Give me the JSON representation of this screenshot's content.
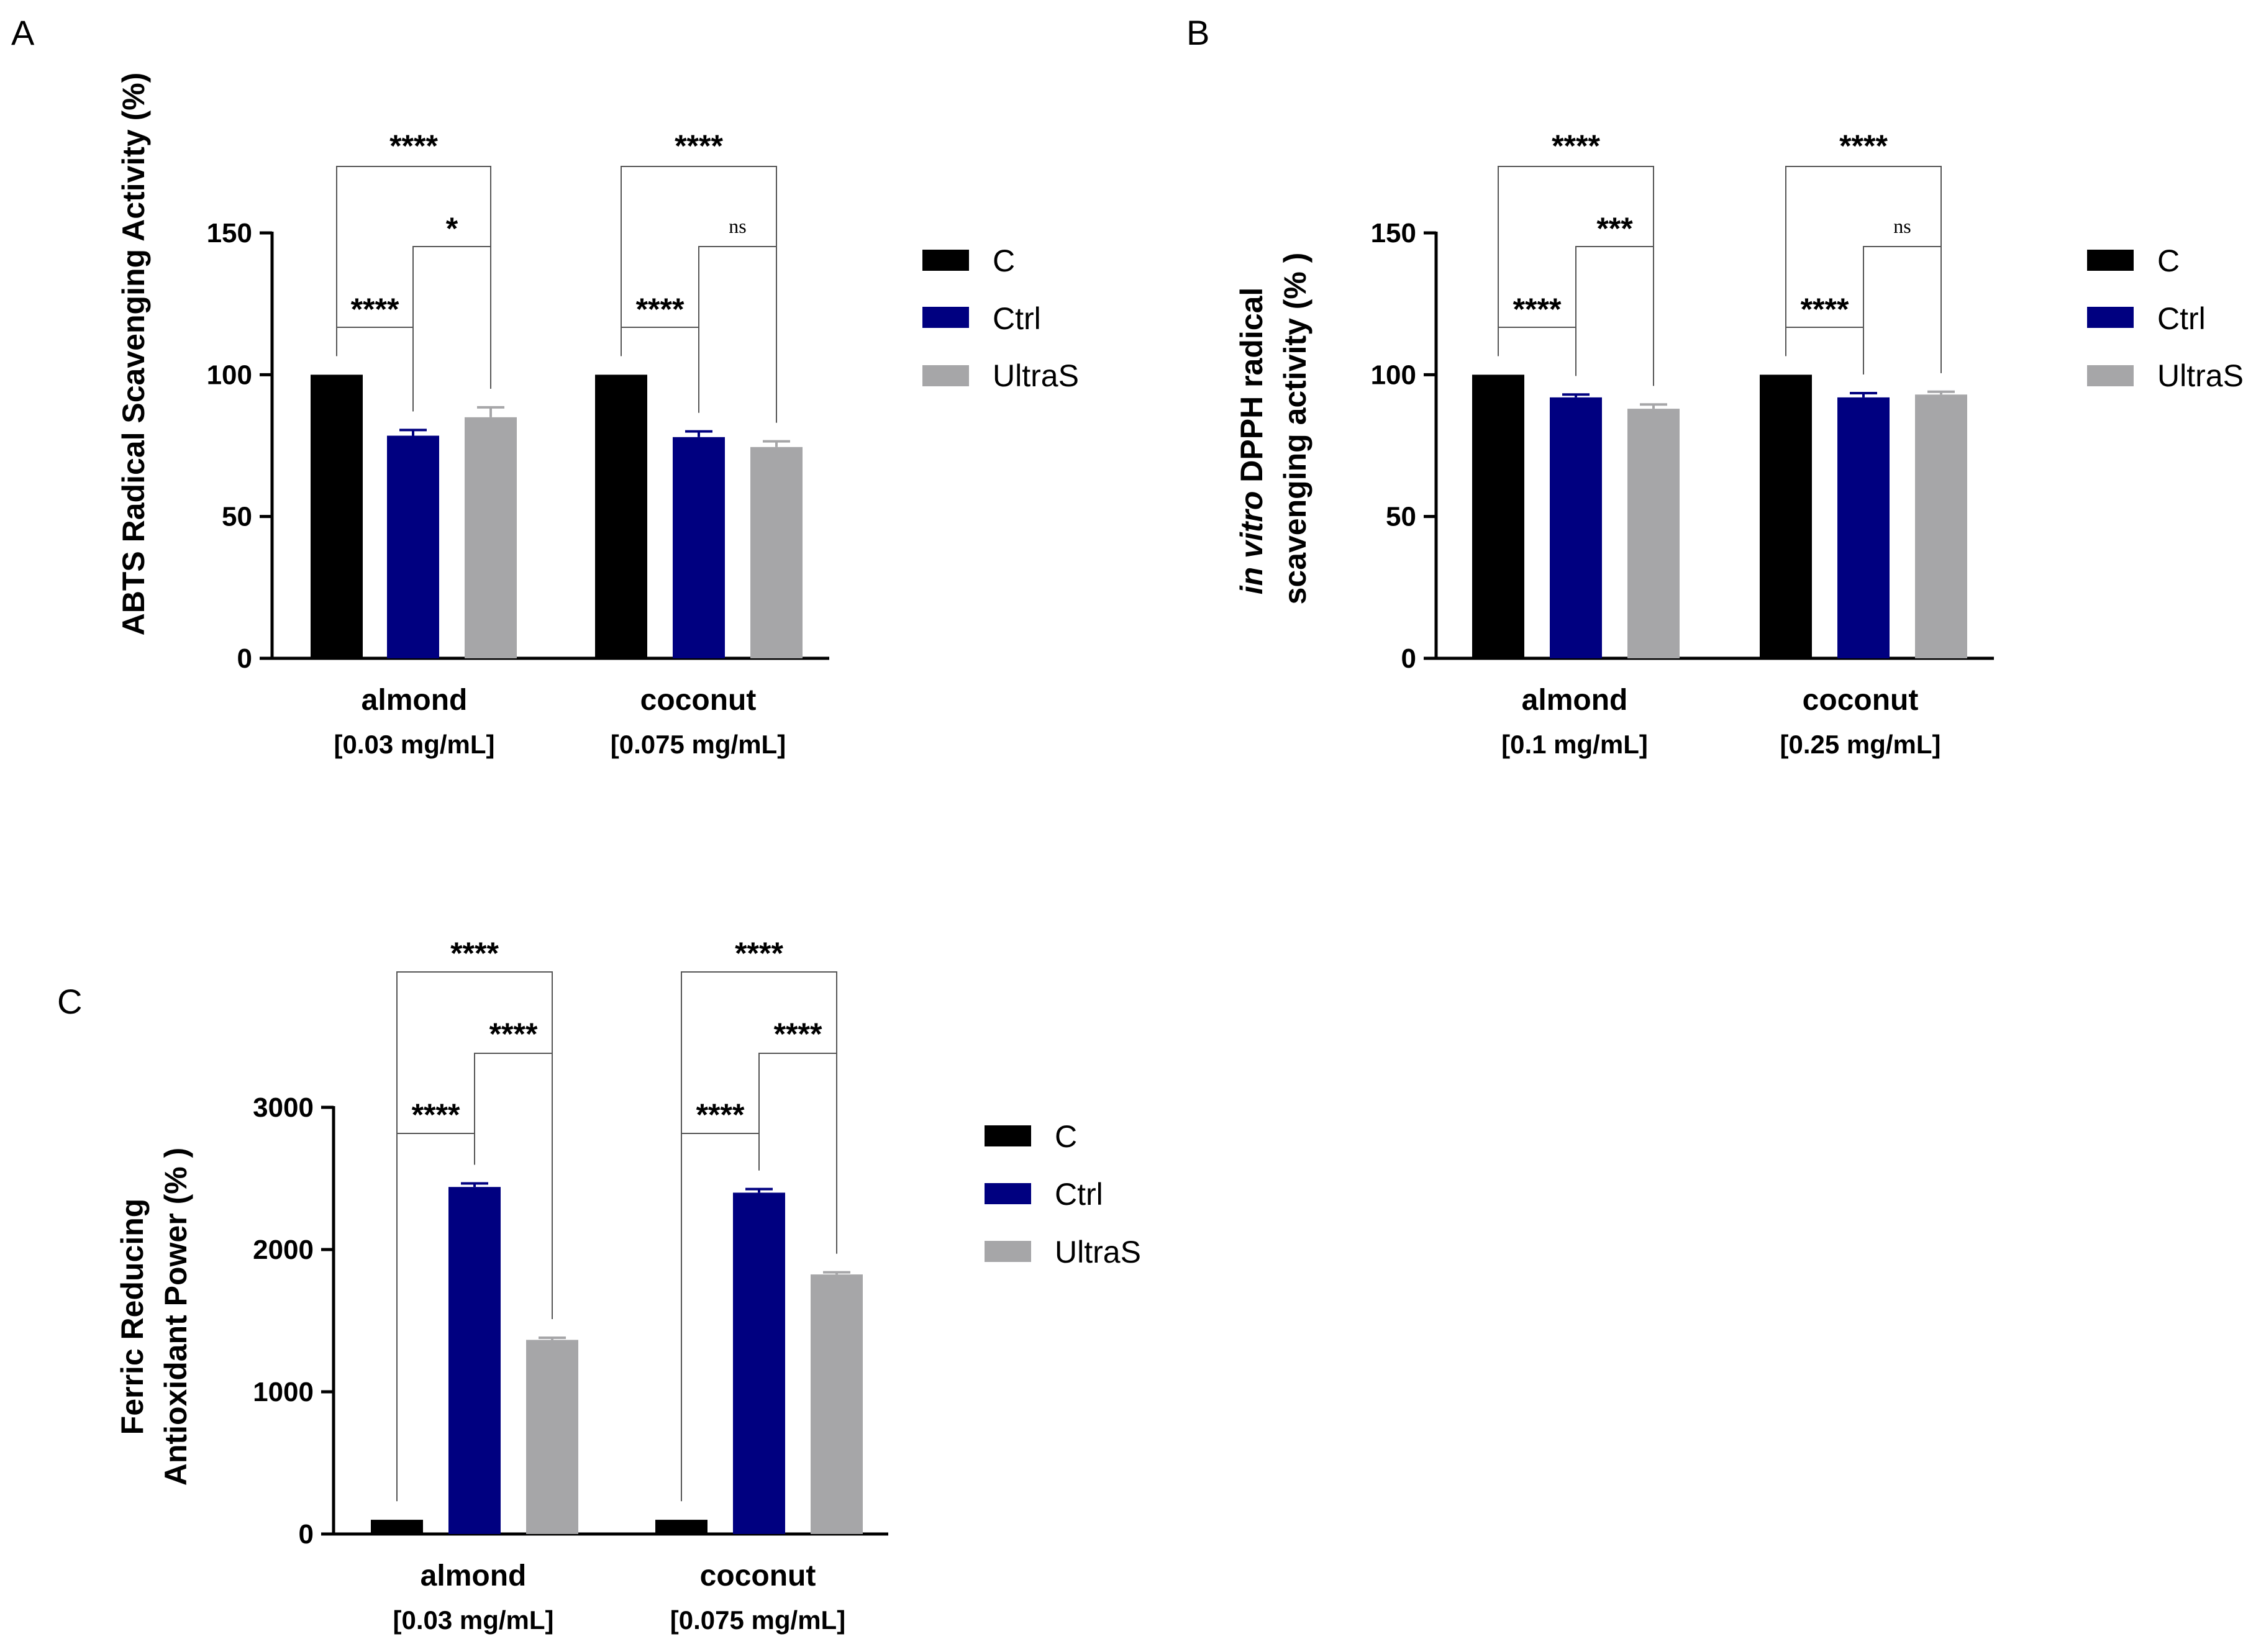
{
  "chart_data": [
    {
      "panel": "A",
      "type": "bar",
      "ylabel": "ABTS Radical Scavenging Activity (%)",
      "ylim": [
        0,
        150
      ],
      "yticks": [
        0,
        50,
        100,
        150
      ],
      "categories": [
        "almond",
        "coconut"
      ],
      "category_notes": [
        "[0.03 mg/mL]",
        "[0.075 mg/mL]"
      ],
      "series": [
        {
          "name": "C",
          "color": "#000000",
          "values": [
            100,
            100
          ],
          "errors": [
            0,
            0
          ]
        },
        {
          "name": "Ctrl",
          "color": "#000080",
          "values": [
            78.5,
            78
          ],
          "errors": [
            2,
            2
          ]
        },
        {
          "name": "UltraS",
          "color": "#a6a6a8",
          "values": [
            85,
            74.5
          ],
          "errors": [
            3.5,
            2
          ]
        }
      ],
      "significance": [
        {
          "group": 0,
          "from": 0,
          "to": 2,
          "label": "****"
        },
        {
          "group": 0,
          "from": 0,
          "to": 1,
          "label": "****"
        },
        {
          "group": 0,
          "from": 1,
          "to": 2,
          "label": "*"
        },
        {
          "group": 1,
          "from": 0,
          "to": 2,
          "label": "****"
        },
        {
          "group": 1,
          "from": 1,
          "to": 2,
          "label": "ns"
        },
        {
          "group": 1,
          "from": 0,
          "to": 1,
          "label": "****"
        }
      ],
      "legend": [
        "C",
        "Ctrl",
        "UltraS"
      ]
    },
    {
      "panel": "B",
      "type": "bar",
      "ylabel_italic": "in vitro",
      "ylabel_rest": " DPPH radical",
      "ylabel_line2": "scavenging activity (% )",
      "ylim": [
        0,
        150
      ],
      "yticks": [
        0,
        50,
        100,
        150
      ],
      "categories": [
        "almond",
        "coconut"
      ],
      "category_notes": [
        "[0.1 mg/mL]",
        "[0.25 mg/mL]"
      ],
      "series": [
        {
          "name": "C",
          "color": "#000000",
          "values": [
            100,
            100
          ],
          "errors": [
            0,
            0
          ]
        },
        {
          "name": "Ctrl",
          "color": "#000080",
          "values": [
            92,
            92
          ],
          "errors": [
            1,
            1.5
          ]
        },
        {
          "name": "UltraS",
          "color": "#a6a6a8",
          "values": [
            88,
            93
          ],
          "errors": [
            1.5,
            1
          ]
        }
      ],
      "significance": [
        {
          "group": 0,
          "from": 0,
          "to": 2,
          "label": "****"
        },
        {
          "group": 0,
          "from": 0,
          "to": 1,
          "label": "****"
        },
        {
          "group": 0,
          "from": 1,
          "to": 2,
          "label": "***"
        },
        {
          "group": 1,
          "from": 0,
          "to": 2,
          "label": "****"
        },
        {
          "group": 1,
          "from": 1,
          "to": 2,
          "label": "ns"
        },
        {
          "group": 1,
          "from": 0,
          "to": 1,
          "label": "****"
        }
      ],
      "legend": [
        "C",
        "Ctrl",
        "UltraS"
      ]
    },
    {
      "panel": "C",
      "type": "bar",
      "ylabel": "Ferric Reducing",
      "ylabel_line2": "Antioxidant Power (% )",
      "ylim": [
        0,
        3000
      ],
      "yticks": [
        0,
        1000,
        2000,
        3000
      ],
      "categories": [
        "almond",
        "coconut"
      ],
      "category_notes": [
        "[0.03 mg/mL]",
        "[0.075 mg/mL]"
      ],
      "series": [
        {
          "name": "C",
          "color": "#000000",
          "values": [
            100,
            100
          ],
          "errors": [
            0,
            0
          ]
        },
        {
          "name": "Ctrl",
          "color": "#000080",
          "values": [
            2440,
            2400
          ],
          "errors": [
            25,
            25
          ]
        },
        {
          "name": "UltraS",
          "color": "#a6a6a8",
          "values": [
            1365,
            1825
          ],
          "errors": [
            15,
            15
          ]
        }
      ],
      "significance": [
        {
          "group": 0,
          "from": 0,
          "to": 2,
          "label": "****"
        },
        {
          "group": 0,
          "from": 0,
          "to": 1,
          "label": "****"
        },
        {
          "group": 0,
          "from": 1,
          "to": 2,
          "label": "****"
        },
        {
          "group": 1,
          "from": 0,
          "to": 2,
          "label": "****"
        },
        {
          "group": 1,
          "from": 1,
          "to": 2,
          "label": "****"
        },
        {
          "group": 1,
          "from": 0,
          "to": 1,
          "label": "****"
        }
      ],
      "legend": [
        "C",
        "Ctrl",
        "UltraS"
      ]
    }
  ]
}
